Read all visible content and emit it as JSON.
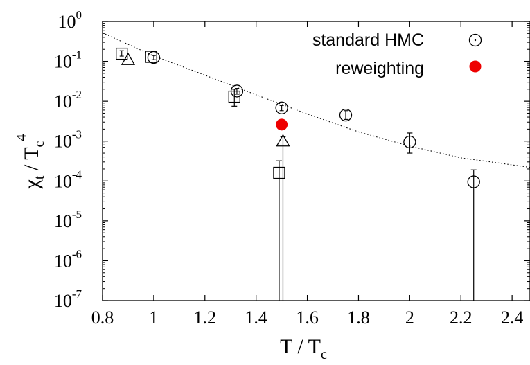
{
  "chart_data": {
    "type": "scatter",
    "xlabel": {
      "main": "T / T",
      "sub": "c"
    },
    "ylabel": {
      "main": "χ",
      "sub1": "t",
      "mid": " / T",
      "sub2": "c",
      "sup": "4"
    },
    "xlim": [
      0.8,
      2.47
    ],
    "ylim_exponent": [
      -7,
      0
    ],
    "yscale": "log",
    "grid": false,
    "legend_position": "top-right",
    "x_ticks": [
      "0.8",
      "1",
      "1.2",
      "1.4",
      "1.6",
      "1.8",
      "2",
      "2.2",
      "2.4"
    ],
    "y_ticks": [
      {
        "base": "10",
        "exp": "0"
      },
      {
        "base": "10",
        "exp": "-1"
      },
      {
        "base": "10",
        "exp": "-2"
      },
      {
        "base": "10",
        "exp": "-3"
      },
      {
        "base": "10",
        "exp": "-4"
      },
      {
        "base": "10",
        "exp": "-5"
      },
      {
        "base": "10",
        "exp": "-6"
      },
      {
        "base": "10",
        "exp": "-7"
      }
    ],
    "legend": [
      {
        "label": "standard HMC",
        "marker": "circle-dot"
      },
      {
        "label": "reweighting",
        "marker": "filled-circle",
        "color": "#ee0000"
      }
    ],
    "fit_curve": {
      "style": "dotted",
      "points": [
        [
          0.8,
          0.52
        ],
        [
          1.0,
          0.137
        ],
        [
          1.2,
          0.045
        ],
        [
          1.4,
          0.0145
        ],
        [
          1.6,
          0.0048
        ],
        [
          1.8,
          0.0017
        ],
        [
          2.0,
          0.00075
        ],
        [
          2.2,
          0.00038
        ],
        [
          2.47,
          0.00022
        ]
      ]
    },
    "series": [
      {
        "name": "standard HMC",
        "marker": "circle",
        "points": [
          {
            "x": 1.0,
            "y": 0.125
          },
          {
            "x": 1.325,
            "y": 0.018
          },
          {
            "x": 1.5,
            "y": 0.0068
          },
          {
            "x": 1.75,
            "y": 0.0045
          },
          {
            "x": 2.0,
            "y": 0.00095,
            "err_low": 0.0005,
            "err_high": 0.0016
          },
          {
            "x": 2.25,
            "y": 9.5e-05,
            "err_low": 1e-08,
            "err_high": 0.00019
          }
        ]
      },
      {
        "marker": "square",
        "points": [
          {
            "x": 0.875,
            "y": 0.155
          },
          {
            "x": 0.99,
            "y": 0.13
          },
          {
            "x": 1.315,
            "y": 0.013,
            "err_low": 0.0075,
            "err_high": 0.02
          },
          {
            "x": 1.49,
            "y": 0.00016,
            "err_low": 1e-08,
            "err_high": 0.00032
          }
        ]
      },
      {
        "marker": "triangle",
        "points": [
          {
            "x": 0.9,
            "y": 0.11
          },
          {
            "x": 1.505,
            "y": 0.001,
            "err_low": 1e-08,
            "err_high": 0.0013
          }
        ]
      },
      {
        "name": "reweighting",
        "marker": "filled-circle",
        "color": "#ee0000",
        "points": [
          {
            "x": 1.5,
            "y": 0.0026
          }
        ]
      }
    ],
    "inner_error_marks": [
      {
        "x": 0.875,
        "y": 0.16,
        "low": 0.135,
        "high": 0.185
      },
      {
        "x": 1.0,
        "y": 0.125,
        "low": 0.11,
        "high": 0.14
      },
      {
        "x": 1.325,
        "y": 0.018,
        "low": 0.015,
        "high": 0.021
      },
      {
        "x": 1.5,
        "y": 0.0068,
        "low": 0.0058,
        "high": 0.0078
      },
      {
        "x": 1.75,
        "y": 0.0045,
        "low": 0.0035,
        "high": 0.0058
      }
    ]
  }
}
